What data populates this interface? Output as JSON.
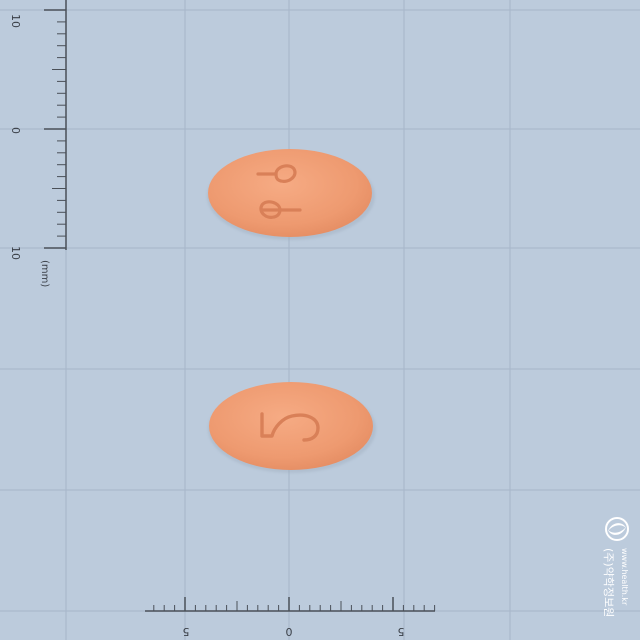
{
  "image": {
    "background_color": "#bccbdc",
    "grid_color": "#a6b6c9",
    "ruler_color": "#4a5058"
  },
  "left_scale": {
    "labels": [
      "10",
      "0",
      "10"
    ],
    "unit": "(mm)"
  },
  "bottom_scale": {
    "labels": [
      "5",
      "0",
      "5"
    ]
  },
  "tablets": [
    {
      "shape": "oval",
      "color": "#f0a077",
      "imprint": "dp",
      "orientation": "rotated 90° clockwise"
    },
    {
      "shape": "oval",
      "color": "#f0a077",
      "imprint": "2",
      "orientation": "rotated 90° clockwise"
    }
  ],
  "watermark": {
    "logo": "circular-swirl-logo",
    "title": "(주)약학정보원",
    "subtitle": "www.health.kr"
  }
}
